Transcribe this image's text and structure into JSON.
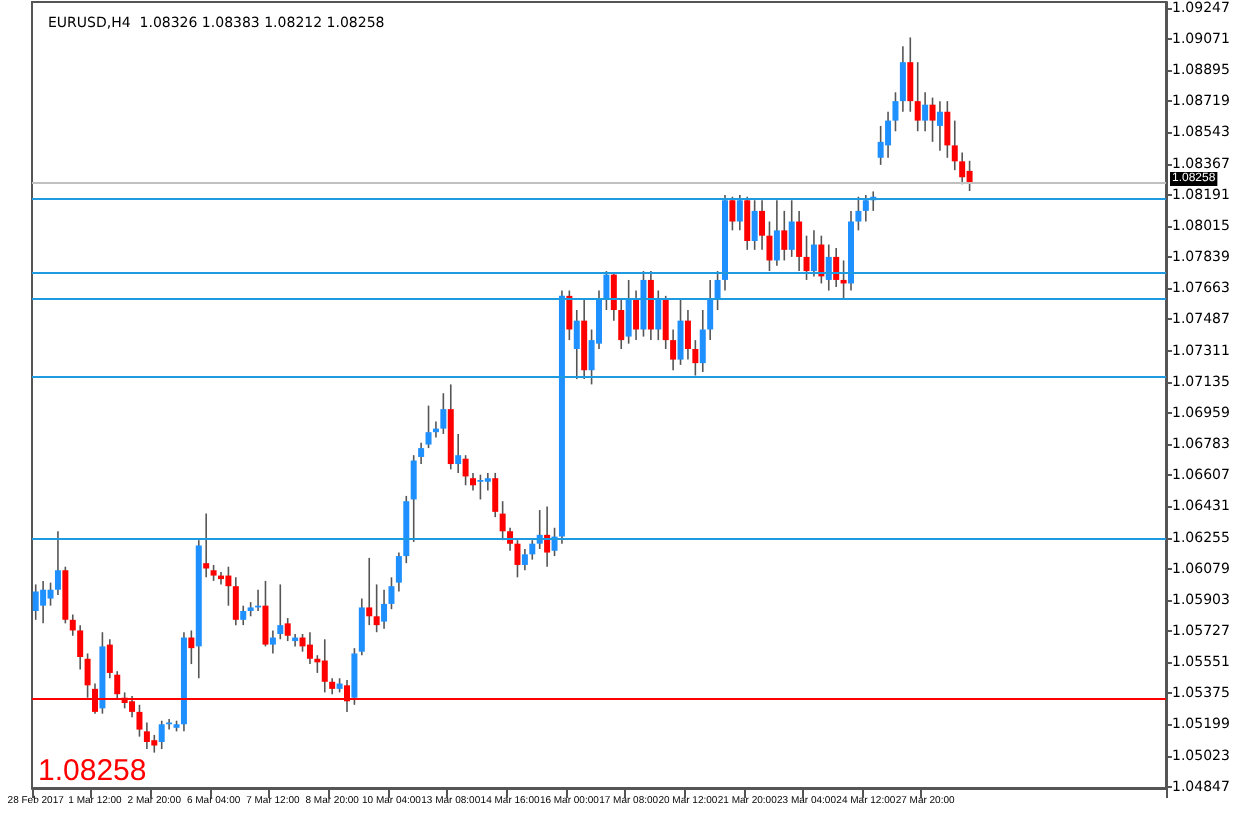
{
  "chart_data": {
    "type": "candlestick",
    "title": "EURUSD,H4  1.08326 1.08383 1.08212 1.08258",
    "categories": [
      "28 Feb 2017",
      null,
      null,
      null,
      null,
      null,
      null,
      null,
      "1 Mar 12:00",
      null,
      null,
      null,
      null,
      null,
      null,
      null,
      "2 Mar 20:00",
      null,
      null,
      null,
      null,
      null,
      null,
      null,
      "6 Mar 04:00",
      null,
      null,
      null,
      null,
      null,
      null,
      null,
      "7 Mar 12:00",
      null,
      null,
      null,
      null,
      null,
      null,
      null,
      "8 Mar 20:00",
      null,
      null,
      null,
      null,
      null,
      null,
      null,
      "10 Mar 04:00",
      null,
      null,
      null,
      null,
      null,
      null,
      null,
      "13 Mar 08:00",
      null,
      null,
      null,
      null,
      null,
      null,
      null,
      "14 Mar 16:00",
      null,
      null,
      null,
      null,
      null,
      null,
      null,
      "16 Mar 00:00",
      null,
      null,
      null,
      null,
      null,
      null,
      null,
      "17 Mar 08:00",
      null,
      null,
      null,
      null,
      null,
      null,
      null,
      "20 Mar 12:00",
      null,
      null,
      null,
      null,
      null,
      null,
      null,
      "21 Mar 20:00",
      null,
      null,
      null,
      null,
      null,
      null,
      null,
      "23 Mar 04:00",
      null,
      null,
      null,
      null,
      null,
      null,
      null,
      "24 Mar 12:00",
      null,
      null,
      null,
      null,
      null,
      null,
      null,
      "27 Mar 20:00",
      null,
      null,
      null,
      null,
      null,
      null,
      null,
      null,
      null,
      null,
      null,
      null,
      null,
      null,
      null,
      null,
      null,
      null,
      null,
      null,
      null,
      null,
      null,
      null,
      null,
      null,
      null,
      null,
      null,
      null,
      null,
      null
    ],
    "ohlc": [
      [
        1.0584,
        1.0599,
        1.0579,
        1.0595
      ],
      [
        1.0587,
        1.0601,
        1.0577,
        1.0596
      ],
      [
        1.0591,
        1.06,
        1.0587,
        1.0596
      ],
      [
        1.0596,
        1.0629,
        1.0593,
        1.0607
      ],
      [
        1.0607,
        1.0609,
        1.0577,
        1.0579
      ],
      [
        1.0579,
        1.0582,
        1.057,
        1.0573
      ],
      [
        1.0573,
        1.0576,
        1.0551,
        1.0558
      ],
      [
        1.0557,
        1.056,
        1.0535,
        1.0542
      ],
      [
        1.054,
        1.0543,
        1.0526,
        1.0527
      ],
      [
        1.0529,
        1.0572,
        1.0526,
        1.0564
      ],
      [
        1.0565,
        1.0568,
        1.0546,
        1.0549
      ],
      [
        1.0548,
        1.055,
        1.0534,
        1.0537
      ],
      [
        1.0535,
        1.0538,
        1.0529,
        1.0532
      ],
      [
        1.0533,
        1.0536,
        1.0524,
        1.0527
      ],
      [
        1.0527,
        1.0531,
        1.0513,
        1.0517
      ],
      [
        1.0516,
        1.0521,
        1.0506,
        1.051
      ],
      [
        1.0511,
        1.0514,
        1.0504,
        1.0508
      ],
      [
        1.051,
        1.0522,
        1.0506,
        1.052
      ],
      [
        1.052,
        1.0523,
        1.0517,
        1.0521
      ],
      [
        1.0518,
        1.0522,
        1.0516,
        1.052
      ],
      [
        1.052,
        1.0572,
        1.0516,
        1.0569
      ],
      [
        1.0569,
        1.0573,
        1.0554,
        1.0563
      ],
      [
        1.0564,
        1.0624,
        1.0546,
        1.0621
      ],
      [
        1.0611,
        1.0639,
        1.0603,
        1.0608
      ],
      [
        1.0607,
        1.061,
        1.0601,
        1.0604
      ],
      [
        1.0604,
        1.0606,
        1.0599,
        1.0602
      ],
      [
        1.0604,
        1.0609,
        1.0587,
        1.0598
      ],
      [
        1.0598,
        1.0603,
        1.0576,
        1.0579
      ],
      [
        1.0579,
        1.0587,
        1.0576,
        1.0584
      ],
      [
        1.0584,
        1.0589,
        1.0581,
        1.0586
      ],
      [
        1.0586,
        1.0596,
        1.0584,
        1.0587
      ],
      [
        1.0587,
        1.0601,
        1.0564,
        1.0565
      ],
      [
        1.0565,
        1.0573,
        1.056,
        1.0569
      ],
      [
        1.0571,
        1.0599,
        1.0568,
        1.0576
      ],
      [
        1.0577,
        1.058,
        1.0567,
        1.057
      ],
      [
        1.0567,
        1.0571,
        1.0564,
        1.0569
      ],
      [
        1.0569,
        1.0571,
        1.0561,
        1.0564
      ],
      [
        1.0565,
        1.0572,
        1.0554,
        1.0557
      ],
      [
        1.0557,
        1.0559,
        1.0549,
        1.0555
      ],
      [
        1.0556,
        1.0568,
        1.0538,
        1.0544
      ],
      [
        1.0544,
        1.0546,
        1.0537,
        1.054
      ],
      [
        1.054,
        1.0546,
        1.0538,
        1.0543
      ],
      [
        1.0542,
        1.0545,
        1.0527,
        1.0533
      ],
      [
        1.0535,
        1.0563,
        1.0531,
        1.056
      ],
      [
        1.0561,
        1.0591,
        1.0559,
        1.0586
      ],
      [
        1.0586,
        1.0614,
        1.0576,
        1.0581
      ],
      [
        1.0581,
        1.0599,
        1.0572,
        1.0576
      ],
      [
        1.0578,
        1.0596,
        1.0574,
        1.0588
      ],
      [
        1.0588,
        1.0603,
        1.0585,
        1.0598
      ],
      [
        1.06,
        1.0617,
        1.0595,
        1.0615
      ],
      [
        1.0615,
        1.0649,
        1.0611,
        1.0646
      ],
      [
        1.0647,
        1.0672,
        1.0623,
        1.0669
      ],
      [
        1.0671,
        1.0679,
        1.0667,
        1.0676
      ],
      [
        1.0678,
        1.07,
        1.0676,
        1.0685
      ],
      [
        1.0685,
        1.0691,
        1.0682,
        1.0687
      ],
      [
        1.0687,
        1.0707,
        1.0684,
        1.0698
      ],
      [
        1.0698,
        1.0712,
        1.0664,
        1.0667
      ],
      [
        1.0667,
        1.0684,
        1.0662,
        1.0672
      ],
      [
        1.067,
        1.0672,
        1.0655,
        1.066
      ],
      [
        1.0659,
        1.0662,
        1.0652,
        1.0655
      ],
      [
        1.0657,
        1.0661,
        1.0647,
        1.0658
      ],
      [
        1.0657,
        1.0662,
        1.0652,
        1.0659
      ],
      [
        1.0659,
        1.0662,
        1.0637,
        1.064
      ],
      [
        1.0639,
        1.0646,
        1.0624,
        1.0629
      ],
      [
        1.0629,
        1.0631,
        1.0618,
        1.0622
      ],
      [
        1.0622,
        1.0624,
        1.0603,
        1.061
      ],
      [
        1.061,
        1.0619,
        1.0607,
        1.0616
      ],
      [
        1.0616,
        1.0624,
        1.0613,
        1.0622
      ],
      [
        1.0622,
        1.0641,
        1.0619,
        1.0627
      ],
      [
        1.0627,
        1.0643,
        1.0609,
        1.0617
      ],
      [
        1.0618,
        1.0631,
        1.0615,
        1.0626
      ],
      [
        1.0626,
        1.0765,
        1.0622,
        1.0762
      ],
      [
        1.0762,
        1.0765,
        1.0737,
        1.0743
      ],
      [
        1.0732,
        1.0754,
        1.0715,
        1.0748
      ],
      [
        1.0748,
        1.076,
        1.0715,
        1.072
      ],
      [
        1.072,
        1.0743,
        1.0712,
        1.0737
      ],
      [
        1.0735,
        1.0765,
        1.0732,
        1.076
      ],
      [
        1.076,
        1.0776,
        1.0754,
        1.0774
      ],
      [
        1.0774,
        1.0775,
        1.0748,
        1.0754
      ],
      [
        1.0754,
        1.076,
        1.0732,
        1.0737
      ],
      [
        1.0739,
        1.0771,
        1.0735,
        1.076
      ],
      [
        1.076,
        1.0765,
        1.0737,
        1.0743
      ],
      [
        1.0743,
        1.0776,
        1.0739,
        1.0771
      ],
      [
        1.0771,
        1.0776,
        1.0737,
        1.0743
      ],
      [
        1.0743,
        1.0765,
        1.0737,
        1.076
      ],
      [
        1.076,
        1.0762,
        1.0732,
        1.0737
      ],
      [
        1.0737,
        1.0743,
        1.072,
        1.0726
      ],
      [
        1.0726,
        1.076,
        1.0723,
        1.0748
      ],
      [
        1.0748,
        1.0754,
        1.0726,
        1.0732
      ],
      [
        1.0732,
        1.0737,
        1.0717,
        1.0724
      ],
      [
        1.0724,
        1.0754,
        1.0719,
        1.0743
      ],
      [
        1.0743,
        1.0771,
        1.0737,
        1.076
      ],
      [
        1.076,
        1.0776,
        1.0754,
        1.0771
      ],
      [
        1.0771,
        1.0819,
        1.0765,
        1.0816
      ],
      [
        1.0816,
        1.0818,
        1.0799,
        1.0804
      ],
      [
        1.0804,
        1.0819,
        1.0799,
        1.0816
      ],
      [
        1.0816,
        1.0818,
        1.0788,
        1.0793
      ],
      [
        1.0793,
        1.0816,
        1.0788,
        1.081
      ],
      [
        1.081,
        1.0816,
        1.0788,
        1.0796
      ],
      [
        1.0796,
        1.0804,
        1.0776,
        1.0782
      ],
      [
        1.0782,
        1.0816,
        1.0779,
        1.0799
      ],
      [
        1.0799,
        1.081,
        1.0782,
        1.0788
      ],
      [
        1.0788,
        1.0816,
        1.0784,
        1.0804
      ],
      [
        1.0804,
        1.081,
        1.0776,
        1.0784
      ],
      [
        1.0784,
        1.0796,
        1.0771,
        1.0776
      ],
      [
        1.0776,
        1.0799,
        1.0773,
        1.0791
      ],
      [
        1.0791,
        1.0796,
        1.0769,
        1.0773
      ],
      [
        1.0771,
        1.0791,
        1.0765,
        1.0784
      ],
      [
        1.0784,
        1.0789,
        1.0767,
        1.0771
      ],
      [
        1.0771,
        1.0782,
        1.076,
        1.0769
      ],
      [
        1.0769,
        1.081,
        1.0765,
        1.0804
      ],
      [
        1.0804,
        1.0818,
        1.0799,
        1.081
      ],
      [
        1.081,
        1.0819,
        1.0804,
        1.0816
      ],
      [
        1.0816,
        1.0821,
        1.081,
        1.0818
      ],
      [
        1.084,
        1.0858,
        1.0836,
        1.0849
      ],
      [
        1.0847,
        1.0866,
        1.084,
        1.0861
      ],
      [
        1.0861,
        1.0877,
        1.0855,
        1.0872
      ],
      [
        1.0872,
        1.0903,
        1.0866,
        1.0894
      ],
      [
        1.0894,
        1.0908,
        1.0866,
        1.0872
      ],
      [
        1.0872,
        1.0894,
        1.0855,
        1.0861
      ],
      [
        1.0861,
        1.0877,
        1.0855,
        1.087
      ],
      [
        1.087,
        1.0874,
        1.0849,
        1.0861
      ],
      [
        1.0858,
        1.0872,
        1.0844,
        1.0866
      ],
      [
        1.0866,
        1.0872,
        1.084,
        1.0847
      ],
      [
        1.0847,
        1.0861,
        1.0833,
        1.0838
      ],
      [
        1.0838,
        1.0843,
        1.0825,
        1.0829
      ],
      [
        1.08326,
        1.08383,
        1.08212,
        1.08258
      ],
      null,
      null,
      null,
      null,
      null,
      null,
      null,
      null,
      null,
      null,
      null,
      null,
      null,
      null,
      null,
      null,
      null,
      null,
      null,
      null,
      null,
      null,
      null,
      null,
      null,
      null
    ],
    "ylim": [
      1.0484,
      1.0928
    ],
    "yticks": [
      1.09247,
      1.09071,
      1.08895,
      1.08719,
      1.08543,
      1.08367,
      1.08191,
      1.08015,
      1.07839,
      1.07663,
      1.07487,
      1.07311,
      1.07135,
      1.06959,
      1.06783,
      1.06607,
      1.06431,
      1.06255,
      1.06079,
      1.05903,
      1.05727,
      1.05551,
      1.05375,
      1.05199,
      1.05023,
      1.04847
    ],
    "ref_lines": [
      {
        "axis": "y",
        "value": 1.08258,
        "label": "1.08258",
        "color": "#c0c0c0"
      },
      {
        "axis": "y",
        "value": 1.0535,
        "color": "#ff0000"
      },
      {
        "axis": "y",
        "value": 1.0817,
        "color": "#1e9be0"
      },
      {
        "axis": "y",
        "value": 1.0775,
        "color": "#1e9be0"
      },
      {
        "axis": "y",
        "value": 1.076,
        "color": "#1e9be0"
      },
      {
        "axis": "y",
        "value": 1.0717,
        "color": "#1e9be0"
      },
      {
        "axis": "y",
        "value": 1.0625,
        "color": "#1e9be0"
      }
    ],
    "annotations": [
      "1.08258"
    ]
  }
}
